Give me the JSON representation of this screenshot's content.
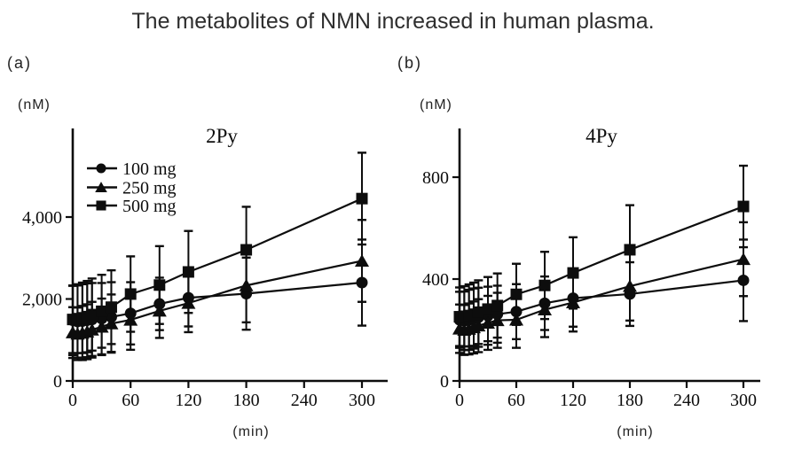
{
  "figure_title": "The metabolites of NMN increased in human plasma.",
  "colors": {
    "ink": "#0d0d0d",
    "title_text": "#2e2e2e",
    "background": "#ffffff"
  },
  "chart_data": [
    {
      "type": "line",
      "title": "2Py",
      "panel_label": "(a)",
      "y_unit": "(nM)",
      "x_unit": "(min)",
      "legend_position": "upper-left-inside",
      "grid": false,
      "x": [
        0,
        5,
        10,
        15,
        20,
        30,
        40,
        60,
        90,
        120,
        180,
        300
      ],
      "x_ticks": [
        0,
        60,
        120,
        180,
        240,
        300
      ],
      "x_tick_labels": [
        "0",
        "60",
        "120",
        "180",
        "240",
        "300"
      ],
      "y_ticks": [
        0,
        2000,
        4000
      ],
      "y_tick_labels": [
        "0",
        "2,000",
        "4,000"
      ],
      "xlim": [
        0,
        327
      ],
      "ylim": [
        0,
        6200
      ],
      "series": [
        {
          "name": "100 mg",
          "marker": "circle",
          "values": [
            1480,
            1450,
            1460,
            1480,
            1500,
            1520,
            1560,
            1650,
            1880,
            2030,
            2130,
            2400
          ],
          "errors": [
            850,
            880,
            900,
            900,
            890,
            870,
            850,
            760,
            640,
            700,
            880,
            1050
          ]
        },
        {
          "name": "250 mg",
          "marker": "triangle",
          "values": [
            1180,
            1150,
            1170,
            1200,
            1250,
            1320,
            1400,
            1490,
            1710,
            1900,
            2330,
            2930
          ],
          "errors": [
            620,
            640,
            660,
            670,
            680,
            690,
            710,
            730,
            660,
            710,
            900,
            1000
          ]
        },
        {
          "name": "500 mg",
          "marker": "square",
          "values": [
            1500,
            1520,
            1540,
            1570,
            1620,
            1700,
            1800,
            2120,
            2340,
            2660,
            3200,
            4450
          ],
          "errors": [
            820,
            840,
            860,
            870,
            880,
            890,
            900,
            920,
            950,
            1000,
            1050,
            1120
          ]
        }
      ]
    },
    {
      "type": "line",
      "title": "4Py",
      "panel_label": "(b)",
      "y_unit": "(nM)",
      "x_unit": "(min)",
      "legend_position": "none",
      "grid": false,
      "x": [
        0,
        5,
        10,
        15,
        20,
        30,
        40,
        60,
        90,
        120,
        180,
        300
      ],
      "x_ticks": [
        0,
        60,
        120,
        180,
        240,
        300
      ],
      "x_tick_labels": [
        "0",
        "60",
        "120",
        "180",
        "240",
        "300"
      ],
      "y_ticks": [
        0,
        400,
        800
      ],
      "y_tick_labels": [
        "0",
        "400",
        "800"
      ],
      "xlim": [
        0,
        318
      ],
      "ylim": [
        0,
        990
      ],
      "series": [
        {
          "name": "100 mg",
          "marker": "circle",
          "values": [
            240,
            236,
            240,
            245,
            250,
            256,
            262,
            272,
            305,
            325,
            341,
            395
          ],
          "errors": [
            110,
            115,
            118,
            118,
            116,
            114,
            112,
            108,
            105,
            112,
            125,
            160
          ]
        },
        {
          "name": "250 mg",
          "marker": "triangle",
          "values": [
            205,
            200,
            204,
            210,
            217,
            228,
            238,
            240,
            280,
            308,
            372,
            478
          ],
          "errors": [
            95,
            98,
            100,
            102,
            104,
            106,
            108,
            110,
            108,
            114,
            135,
            145
          ]
        },
        {
          "name": "500 mg",
          "marker": "square",
          "values": [
            252,
            254,
            257,
            262,
            270,
            282,
            296,
            340,
            375,
            424,
            515,
            685
          ],
          "errors": [
            115,
            118,
            122,
            124,
            125,
            126,
            126,
            120,
            132,
            140,
            175,
            160
          ]
        }
      ]
    }
  ]
}
